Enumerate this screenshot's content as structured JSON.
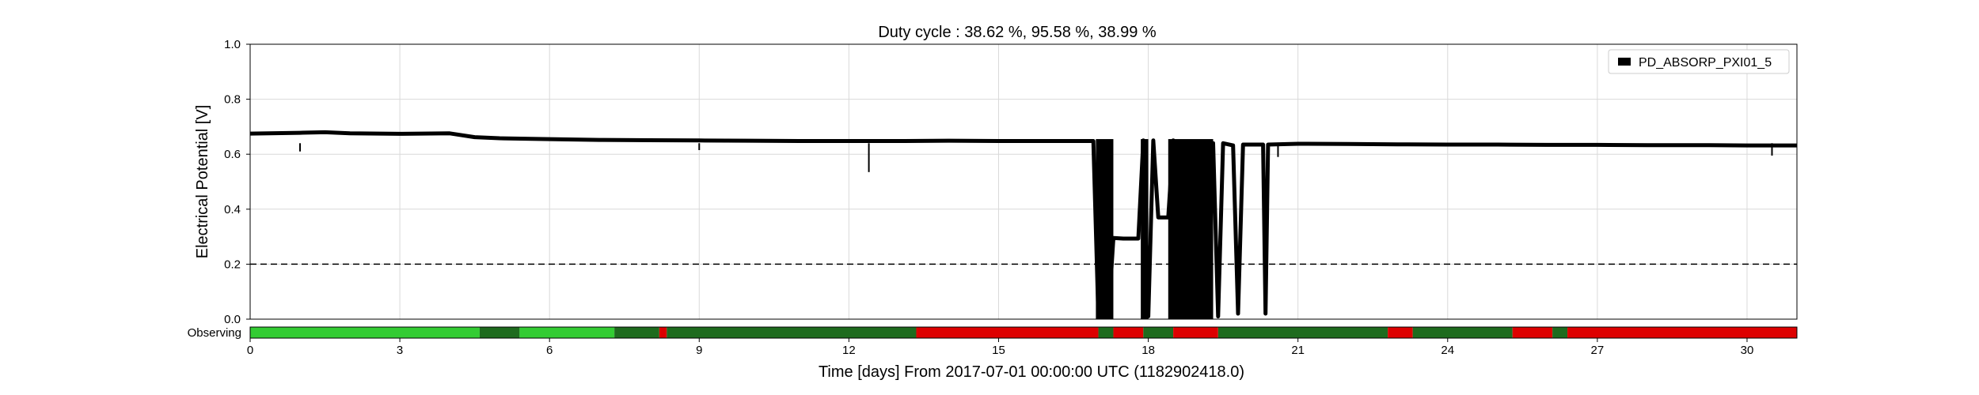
{
  "chart_data": {
    "type": "line",
    "title": "Duty cycle : 38.62 %, 95.58 %, 38.99 %",
    "xlabel": "Time [days] From 2017-07-01 00:00:00 UTC (1182902418.0)",
    "ylabel": "Electrical Potential [V]",
    "xlim": [
      0,
      31
    ],
    "ylim": [
      0,
      1.0
    ],
    "xticks": [
      0,
      3,
      6,
      9,
      12,
      15,
      18,
      21,
      24,
      27,
      30
    ],
    "yticks": [
      "0.0",
      "0.2",
      "0.4",
      "0.6",
      "0.8",
      "1.0"
    ],
    "grid": true,
    "legend_position": "top-right",
    "threshold": 0.2,
    "series": [
      {
        "name": "PD_ABSORP_PXI01_5",
        "color": "#000000",
        "points": [
          [
            0,
            0.675
          ],
          [
            1,
            0.678
          ],
          [
            1.5,
            0.68
          ],
          [
            2,
            0.676
          ],
          [
            3,
            0.674
          ],
          [
            4,
            0.676
          ],
          [
            4.5,
            0.662
          ],
          [
            5,
            0.658
          ],
          [
            6,
            0.655
          ],
          [
            7,
            0.652
          ],
          [
            8,
            0.651
          ],
          [
            9,
            0.65
          ],
          [
            10,
            0.649
          ],
          [
            11,
            0.648
          ],
          [
            12,
            0.648
          ],
          [
            13,
            0.648
          ],
          [
            14,
            0.649
          ],
          [
            15,
            0.648
          ],
          [
            16,
            0.648
          ],
          [
            16.9,
            0.648
          ],
          [
            17.0,
            0.01
          ],
          [
            17.1,
            0.64
          ],
          [
            17.2,
            0.01
          ],
          [
            17.3,
            0.295
          ],
          [
            17.5,
            0.293
          ],
          [
            17.8,
            0.293
          ],
          [
            17.9,
            0.65
          ],
          [
            18.0,
            0.01
          ],
          [
            18.1,
            0.65
          ],
          [
            18.2,
            0.37
          ],
          [
            18.4,
            0.37
          ],
          [
            18.5,
            0.65
          ],
          [
            18.7,
            0.01
          ],
          [
            18.9,
            0.64
          ],
          [
            19.1,
            0.01
          ],
          [
            19.3,
            0.64
          ],
          [
            19.4,
            0.01
          ],
          [
            19.5,
            0.64
          ],
          [
            19.7,
            0.632
          ],
          [
            19.8,
            0.02
          ],
          [
            19.9,
            0.635
          ],
          [
            20,
            0.635
          ],
          [
            20.3,
            0.635
          ],
          [
            20.35,
            0.02
          ],
          [
            20.4,
            0.635
          ],
          [
            21,
            0.638
          ],
          [
            22,
            0.637
          ],
          [
            23,
            0.636
          ],
          [
            24,
            0.635
          ],
          [
            25,
            0.635
          ],
          [
            26,
            0.634
          ],
          [
            27,
            0.634
          ],
          [
            28,
            0.633
          ],
          [
            29,
            0.633
          ],
          [
            30,
            0.632
          ],
          [
            31,
            0.632
          ]
        ],
        "spikes": [
          [
            1.0,
            0.61
          ],
          [
            12.4,
            0.535
          ],
          [
            9.0,
            0.615
          ],
          [
            30.5,
            0.595
          ],
          [
            20.6,
            0.59
          ]
        ],
        "bands": [
          [
            16.95,
            17.3
          ],
          [
            17.85,
            18.0
          ],
          [
            18.4,
            19.3
          ]
        ]
      }
    ],
    "state_bar": {
      "label": "Observing",
      "colors": {
        "light": "#33cc33",
        "dark": "#1e6b1e",
        "red": "#dd0000"
      },
      "segments": [
        {
          "start": 0,
          "end": 4.6,
          "state": "light"
        },
        {
          "start": 4.6,
          "end": 5.4,
          "state": "dark"
        },
        {
          "start": 5.4,
          "end": 7.3,
          "state": "light"
        },
        {
          "start": 7.3,
          "end": 8.2,
          "state": "dark"
        },
        {
          "start": 8.2,
          "end": 8.35,
          "state": "red"
        },
        {
          "start": 8.35,
          "end": 13.35,
          "state": "dark"
        },
        {
          "start": 13.35,
          "end": 17.0,
          "state": "red"
        },
        {
          "start": 17.0,
          "end": 17.3,
          "state": "dark"
        },
        {
          "start": 17.3,
          "end": 17.9,
          "state": "red"
        },
        {
          "start": 17.9,
          "end": 18.5,
          "state": "dark"
        },
        {
          "start": 18.5,
          "end": 19.4,
          "state": "red"
        },
        {
          "start": 19.4,
          "end": 22.8,
          "state": "dark"
        },
        {
          "start": 22.8,
          "end": 23.3,
          "state": "red"
        },
        {
          "start": 23.3,
          "end": 25.3,
          "state": "dark"
        },
        {
          "start": 25.3,
          "end": 26.1,
          "state": "red"
        },
        {
          "start": 26.1,
          "end": 26.4,
          "state": "dark"
        },
        {
          "start": 26.4,
          "end": 31,
          "state": "red"
        }
      ]
    }
  }
}
